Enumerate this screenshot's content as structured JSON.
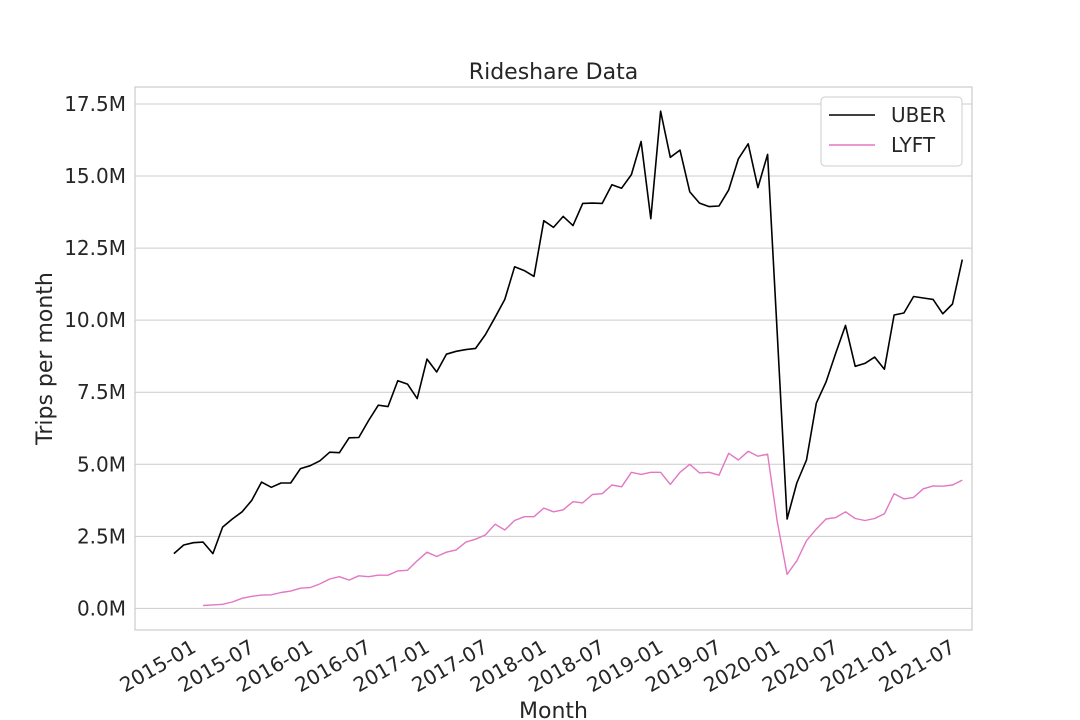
{
  "chart_data": {
    "type": "line",
    "title": "Rideshare Data",
    "xlabel": "Month",
    "ylabel": "Trips per month",
    "ylim": [
      -0.75,
      17.5
    ],
    "xlim": [
      "2014-07",
      "2021-09"
    ],
    "yticks": [
      0,
      2.5,
      5.0,
      7.5,
      10.0,
      12.5,
      15.0,
      17.5
    ],
    "ytick_labels": [
      "0.0M",
      "2.5M",
      "5.0M",
      "7.5M",
      "10.0M",
      "12.5M",
      "15.0M",
      "17.5M"
    ],
    "xticks": [
      "2015-01",
      "2015-07",
      "2016-01",
      "2016-07",
      "2017-01",
      "2017-07",
      "2018-01",
      "2018-07",
      "2019-01",
      "2019-07",
      "2020-01",
      "2020-07",
      "2021-01",
      "2021-07"
    ],
    "grid": "horizontal",
    "legend_position": "top-right",
    "series": [
      {
        "name": "UBER",
        "color": "#000000",
        "points": [
          [
            "2014-11",
            1.9
          ],
          [
            "2014-12",
            2.2
          ],
          [
            "2015-01",
            2.28
          ],
          [
            "2015-02",
            2.3
          ],
          [
            "2015-03",
            1.9
          ],
          [
            "2015-04",
            2.82
          ],
          [
            "2015-05",
            3.1
          ],
          [
            "2015-06",
            3.35
          ],
          [
            "2015-07",
            3.75
          ],
          [
            "2015-08",
            4.38
          ],
          [
            "2015-09",
            4.2
          ],
          [
            "2015-10",
            4.35
          ],
          [
            "2015-11",
            4.35
          ],
          [
            "2015-12",
            4.85
          ],
          [
            "2016-01",
            4.95
          ],
          [
            "2016-02",
            5.12
          ],
          [
            "2016-03",
            5.42
          ],
          [
            "2016-04",
            5.4
          ],
          [
            "2016-05",
            5.92
          ],
          [
            "2016-06",
            5.93
          ],
          [
            "2016-07",
            6.52
          ],
          [
            "2016-08",
            7.05
          ],
          [
            "2016-09",
            7.0
          ],
          [
            "2016-10",
            7.9
          ],
          [
            "2016-11",
            7.78
          ],
          [
            "2016-12",
            7.28
          ],
          [
            "2017-01",
            8.65
          ],
          [
            "2017-02",
            8.2
          ],
          [
            "2017-03",
            8.82
          ],
          [
            "2017-04",
            8.92
          ],
          [
            "2017-05",
            8.98
          ],
          [
            "2017-06",
            9.02
          ],
          [
            "2017-07",
            9.5
          ],
          [
            "2017-08",
            10.1
          ],
          [
            "2017-09",
            10.72
          ],
          [
            "2017-10",
            11.85
          ],
          [
            "2017-11",
            11.72
          ],
          [
            "2017-12",
            11.52
          ],
          [
            "2018-01",
            13.45
          ],
          [
            "2018-02",
            13.22
          ],
          [
            "2018-03",
            13.6
          ],
          [
            "2018-04",
            13.28
          ],
          [
            "2018-05",
            14.05
          ],
          [
            "2018-06",
            14.06
          ],
          [
            "2018-07",
            14.05
          ],
          [
            "2018-08",
            14.7
          ],
          [
            "2018-09",
            14.58
          ],
          [
            "2018-10",
            15.05
          ],
          [
            "2018-11",
            16.2
          ],
          [
            "2018-12",
            13.52
          ],
          [
            "2019-01",
            17.25
          ],
          [
            "2019-02",
            15.65
          ],
          [
            "2019-03",
            15.9
          ],
          [
            "2019-04",
            14.45
          ],
          [
            "2019-05",
            14.06
          ],
          [
            "2019-06",
            13.94
          ],
          [
            "2019-07",
            13.96
          ],
          [
            "2019-08",
            14.52
          ],
          [
            "2019-09",
            15.6
          ],
          [
            "2019-10",
            16.12
          ],
          [
            "2019-11",
            14.6
          ],
          [
            "2019-12",
            15.75
          ],
          [
            "2020-01",
            9.5
          ],
          [
            "2020-02",
            3.1
          ],
          [
            "2020-03",
            4.35
          ],
          [
            "2020-04",
            5.15
          ],
          [
            "2020-05",
            7.12
          ],
          [
            "2020-06",
            7.85
          ],
          [
            "2020-07",
            8.85
          ],
          [
            "2020-08",
            9.82
          ],
          [
            "2020-09",
            8.4
          ],
          [
            "2020-10",
            8.5
          ],
          [
            "2020-11",
            8.72
          ],
          [
            "2020-12",
            8.3
          ],
          [
            "2021-01",
            10.18
          ],
          [
            "2021-02",
            10.25
          ],
          [
            "2021-03",
            10.82
          ],
          [
            "2021-04",
            10.77
          ],
          [
            "2021-05",
            10.72
          ],
          [
            "2021-06",
            10.22
          ],
          [
            "2021-07",
            10.56
          ],
          [
            "2021-08",
            12.1
          ]
        ]
      },
      {
        "name": "LYFT",
        "color": "#e377c2",
        "points": [
          [
            "2015-02",
            0.1
          ],
          [
            "2015-03",
            0.12
          ],
          [
            "2015-04",
            0.14
          ],
          [
            "2015-05",
            0.22
          ],
          [
            "2015-06",
            0.35
          ],
          [
            "2015-07",
            0.42
          ],
          [
            "2015-08",
            0.46
          ],
          [
            "2015-09",
            0.47
          ],
          [
            "2015-10",
            0.55
          ],
          [
            "2015-11",
            0.6
          ],
          [
            "2015-12",
            0.7
          ],
          [
            "2016-01",
            0.72
          ],
          [
            "2016-02",
            0.85
          ],
          [
            "2016-03",
            1.02
          ],
          [
            "2016-04",
            1.1
          ],
          [
            "2016-05",
            0.98
          ],
          [
            "2016-06",
            1.13
          ],
          [
            "2016-07",
            1.1
          ],
          [
            "2016-08",
            1.15
          ],
          [
            "2016-09",
            1.15
          ],
          [
            "2016-10",
            1.3
          ],
          [
            "2016-11",
            1.32
          ],
          [
            "2016-12",
            1.65
          ],
          [
            "2017-01",
            1.95
          ],
          [
            "2017-02",
            1.8
          ],
          [
            "2017-03",
            1.95
          ],
          [
            "2017-04",
            2.03
          ],
          [
            "2017-05",
            2.3
          ],
          [
            "2017-06",
            2.4
          ],
          [
            "2017-07",
            2.55
          ],
          [
            "2017-08",
            2.92
          ],
          [
            "2017-09",
            2.72
          ],
          [
            "2017-10",
            3.05
          ],
          [
            "2017-11",
            3.18
          ],
          [
            "2017-12",
            3.18
          ],
          [
            "2018-01",
            3.48
          ],
          [
            "2018-02",
            3.35
          ],
          [
            "2018-03",
            3.42
          ],
          [
            "2018-04",
            3.7
          ],
          [
            "2018-05",
            3.66
          ],
          [
            "2018-06",
            3.95
          ],
          [
            "2018-07",
            3.98
          ],
          [
            "2018-08",
            4.28
          ],
          [
            "2018-09",
            4.22
          ],
          [
            "2018-10",
            4.72
          ],
          [
            "2018-11",
            4.65
          ],
          [
            "2018-12",
            4.72
          ],
          [
            "2019-01",
            4.72
          ],
          [
            "2019-02",
            4.3
          ],
          [
            "2019-03",
            4.72
          ],
          [
            "2019-04",
            5.0
          ],
          [
            "2019-05",
            4.7
          ],
          [
            "2019-06",
            4.72
          ],
          [
            "2019-07",
            4.62
          ],
          [
            "2019-08",
            5.38
          ],
          [
            "2019-09",
            5.15
          ],
          [
            "2019-10",
            5.45
          ],
          [
            "2019-11",
            5.28
          ],
          [
            "2019-12",
            5.35
          ],
          [
            "2020-01",
            3.0
          ],
          [
            "2020-02",
            1.18
          ],
          [
            "2020-03",
            1.65
          ],
          [
            "2020-04",
            2.35
          ],
          [
            "2020-05",
            2.75
          ],
          [
            "2020-06",
            3.1
          ],
          [
            "2020-07",
            3.15
          ],
          [
            "2020-08",
            3.35
          ],
          [
            "2020-09",
            3.12
          ],
          [
            "2020-10",
            3.05
          ],
          [
            "2020-11",
            3.12
          ],
          [
            "2020-12",
            3.28
          ],
          [
            "2021-01",
            3.98
          ],
          [
            "2021-02",
            3.8
          ],
          [
            "2021-03",
            3.85
          ],
          [
            "2021-04",
            4.15
          ],
          [
            "2021-05",
            4.25
          ],
          [
            "2021-06",
            4.24
          ],
          [
            "2021-07",
            4.28
          ],
          [
            "2021-08",
            4.45
          ]
        ]
      }
    ]
  }
}
